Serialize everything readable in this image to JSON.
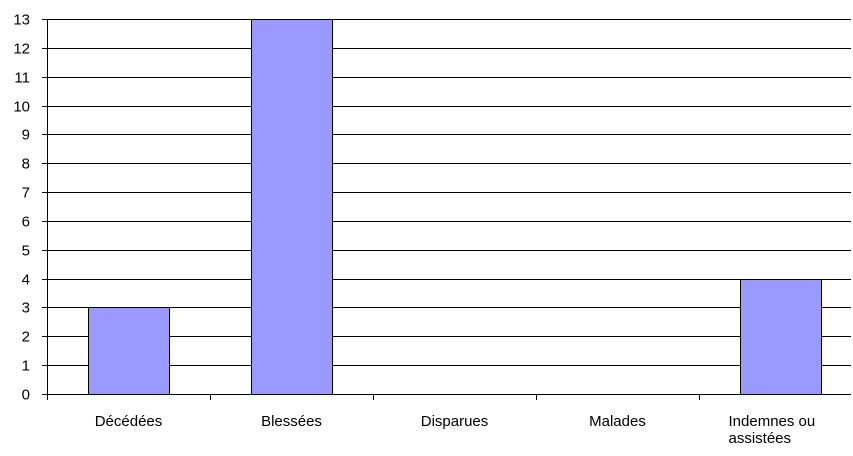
{
  "chart_data": {
    "type": "bar",
    "title": "",
    "xlabel": "",
    "ylabel": "",
    "categories": [
      [
        "Décédées"
      ],
      [
        "Blessées"
      ],
      [
        "Disparues"
      ],
      [
        "Malades"
      ],
      [
        "Indemnes ou",
        "assistées"
      ]
    ],
    "values": [
      3,
      13,
      0,
      0,
      4
    ],
    "ylim": [
      0,
      13
    ],
    "ytick_step": 1,
    "grid": true,
    "legend": "none",
    "colors": {
      "bar_fill": "#9999ff",
      "bar_stroke": "#000000",
      "grid": "#000000",
      "axis": "#000000",
      "background": "#ffffff"
    }
  }
}
